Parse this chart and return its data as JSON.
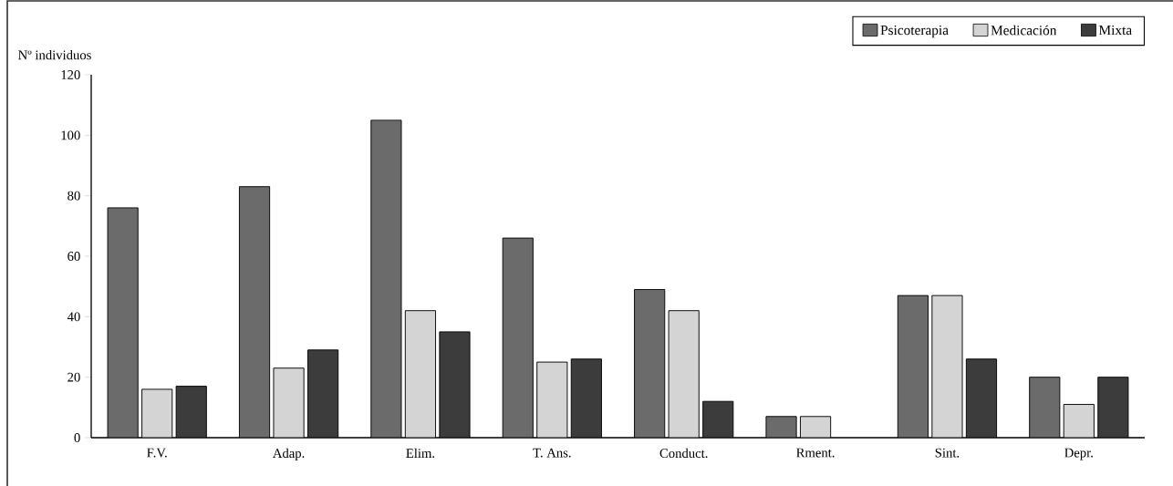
{
  "chart_data": {
    "type": "bar",
    "ylabel": "Nº individuos",
    "categories": [
      "F.V.",
      "Adap.",
      "Elim.",
      "T. Ans.",
      "Conduct.",
      "Rment.",
      "Sint.",
      "Depr."
    ],
    "series": [
      {
        "name": "Psicoterapia",
        "color": "#6b6b6b",
        "values": [
          76,
          83,
          105,
          66,
          49,
          7,
          47,
          20
        ]
      },
      {
        "name": "Medicación",
        "color": "#d4d4d4",
        "values": [
          16,
          23,
          42,
          25,
          42,
          7,
          47,
          11
        ]
      },
      {
        "name": "Mixta",
        "color": "#3c3c3c",
        "values": [
          17,
          29,
          35,
          26,
          12,
          null,
          26,
          20
        ]
      }
    ],
    "ylim": [
      0,
      120
    ],
    "yticks": [
      0,
      20,
      40,
      60,
      80,
      100,
      120
    ],
    "grid": false,
    "legend": "top right"
  }
}
